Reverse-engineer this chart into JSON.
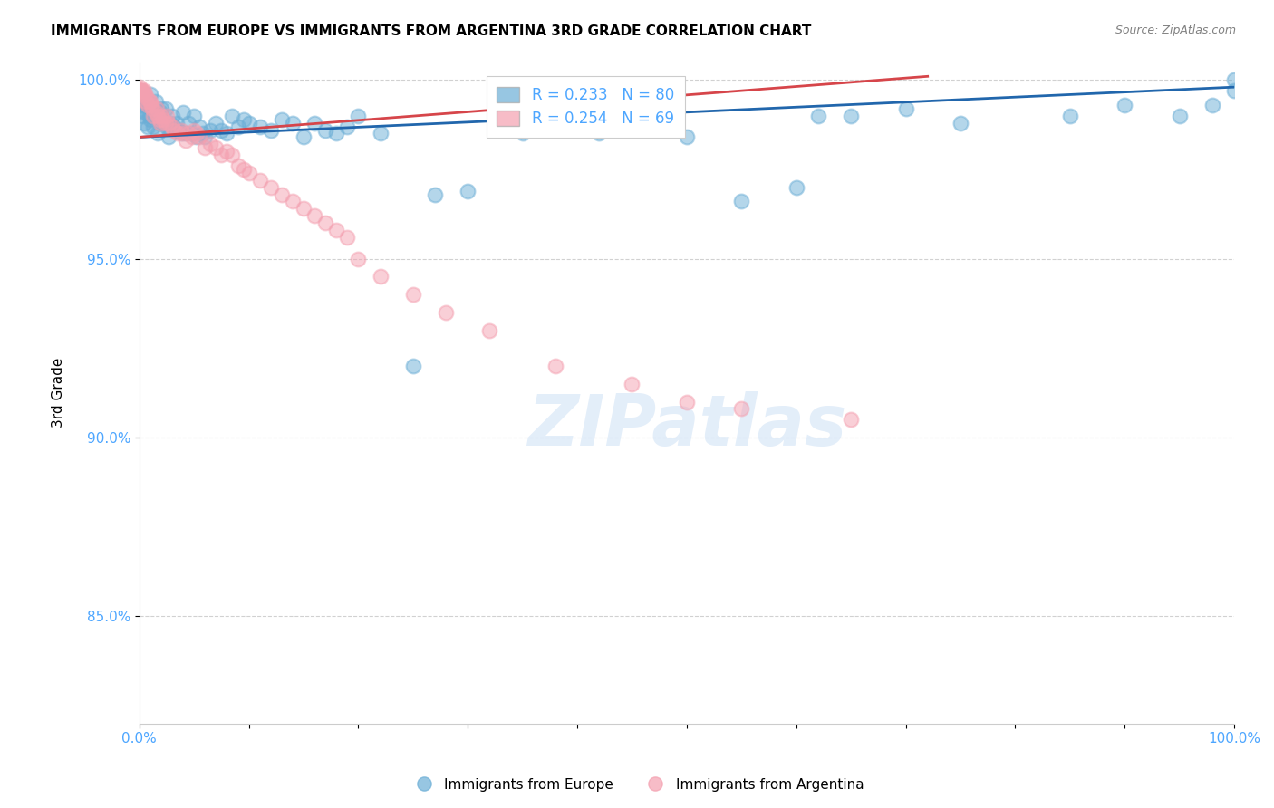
{
  "title": "IMMIGRANTS FROM EUROPE VS IMMIGRANTS FROM ARGENTINA 3RD GRADE CORRELATION CHART",
  "source": "Source: ZipAtlas.com",
  "ylabel": "3rd Grade",
  "xlim": [
    0,
    1
  ],
  "ylim": [
    0.82,
    1.005
  ],
  "yticks": [
    0.85,
    0.9,
    0.95,
    1.0
  ],
  "ytick_labels": [
    "85.0%",
    "90.0%",
    "95.0%",
    "100.0%"
  ],
  "xtick_positions": [
    0.0,
    0.1,
    0.2,
    0.3,
    0.4,
    0.5,
    0.6,
    0.7,
    0.8,
    0.9,
    1.0
  ],
  "xtick_labels": [
    "0.0%",
    "",
    "",
    "",
    "",
    "",
    "",
    "",
    "",
    "",
    "100.0%"
  ],
  "blue_R": 0.233,
  "blue_N": 80,
  "pink_R": 0.254,
  "pink_N": 69,
  "blue_color": "#6baed6",
  "pink_color": "#f4a0b0",
  "blue_line_color": "#2166ac",
  "pink_line_color": "#d6454a",
  "grid_color": "#cccccc",
  "background_color": "#ffffff",
  "blue_x": [
    0.001,
    0.001,
    0.002,
    0.003,
    0.004,
    0.005,
    0.006,
    0.007,
    0.008,
    0.009,
    0.01,
    0.01,
    0.011,
    0.012,
    0.013,
    0.014,
    0.015,
    0.016,
    0.017,
    0.018,
    0.019,
    0.02,
    0.022,
    0.024,
    0.025,
    0.027,
    0.028,
    0.03,
    0.032,
    0.034,
    0.036,
    0.038,
    0.04,
    0.042,
    0.045,
    0.048,
    0.05,
    0.052,
    0.055,
    0.058,
    0.06,
    0.065,
    0.07,
    0.075,
    0.08,
    0.085,
    0.09,
    0.095,
    0.1,
    0.11,
    0.12,
    0.13,
    0.14,
    0.15,
    0.16,
    0.17,
    0.18,
    0.19,
    0.2,
    0.22,
    0.25,
    0.27,
    0.3,
    0.35,
    0.38,
    0.42,
    0.45,
    0.5,
    0.55,
    0.6,
    0.62,
    0.65,
    0.7,
    0.75,
    0.85,
    0.9,
    0.95,
    0.98,
    1.0,
    1.0
  ],
  "blue_y": [
    0.992,
    0.995,
    0.993,
    0.99,
    0.988,
    0.991,
    0.993,
    0.994,
    0.987,
    0.99,
    0.989,
    0.996,
    0.99,
    0.99,
    0.987,
    0.991,
    0.994,
    0.99,
    0.985,
    0.988,
    0.991,
    0.992,
    0.988,
    0.992,
    0.987,
    0.984,
    0.988,
    0.99,
    0.987,
    0.988,
    0.986,
    0.985,
    0.991,
    0.985,
    0.988,
    0.985,
    0.99,
    0.984,
    0.987,
    0.985,
    0.984,
    0.986,
    0.988,
    0.986,
    0.985,
    0.99,
    0.987,
    0.989,
    0.988,
    0.987,
    0.986,
    0.989,
    0.988,
    0.984,
    0.988,
    0.986,
    0.985,
    0.987,
    0.99,
    0.985,
    0.92,
    0.968,
    0.969,
    0.985,
    0.987,
    0.985,
    0.987,
    0.984,
    0.966,
    0.97,
    0.99,
    0.99,
    0.992,
    0.988,
    0.99,
    0.993,
    0.99,
    0.993,
    0.997,
    1.0
  ],
  "pink_x": [
    0.0,
    0.0,
    0.0,
    0.0,
    0.0,
    0.0,
    0.001,
    0.001,
    0.002,
    0.003,
    0.004,
    0.005,
    0.006,
    0.007,
    0.008,
    0.009,
    0.01,
    0.011,
    0.012,
    0.013,
    0.015,
    0.016,
    0.017,
    0.018,
    0.019,
    0.02,
    0.022,
    0.024,
    0.025,
    0.027,
    0.03,
    0.032,
    0.035,
    0.038,
    0.04,
    0.042,
    0.045,
    0.048,
    0.05,
    0.052,
    0.055,
    0.06,
    0.065,
    0.07,
    0.075,
    0.08,
    0.085,
    0.09,
    0.095,
    0.1,
    0.11,
    0.12,
    0.13,
    0.14,
    0.15,
    0.16,
    0.17,
    0.18,
    0.19,
    0.2,
    0.22,
    0.25,
    0.28,
    0.32,
    0.38,
    0.45,
    0.5,
    0.55,
    0.65
  ],
  "pink_y": [
    0.998,
    0.997,
    0.997,
    0.997,
    0.997,
    0.997,
    0.997,
    0.996,
    0.997,
    0.997,
    0.997,
    0.996,
    0.994,
    0.995,
    0.993,
    0.994,
    0.994,
    0.993,
    0.992,
    0.99,
    0.991,
    0.992,
    0.99,
    0.989,
    0.988,
    0.99,
    0.989,
    0.988,
    0.99,
    0.988,
    0.987,
    0.986,
    0.985,
    0.986,
    0.985,
    0.983,
    0.985,
    0.984,
    0.986,
    0.985,
    0.984,
    0.981,
    0.982,
    0.981,
    0.979,
    0.98,
    0.979,
    0.976,
    0.975,
    0.974,
    0.972,
    0.97,
    0.968,
    0.966,
    0.964,
    0.962,
    0.96,
    0.958,
    0.956,
    0.95,
    0.945,
    0.94,
    0.935,
    0.93,
    0.92,
    0.915,
    0.91,
    0.908,
    0.905
  ],
  "blue_line_x": [
    0.0,
    1.0
  ],
  "blue_line_y": [
    0.984,
    0.998
  ],
  "pink_line_x": [
    0.0,
    0.72
  ],
  "pink_line_y": [
    0.984,
    1.001
  ],
  "legend_label_blue": "Immigrants from Europe",
  "legend_label_pink": "Immigrants from Argentina",
  "watermark": "ZIPatlas"
}
